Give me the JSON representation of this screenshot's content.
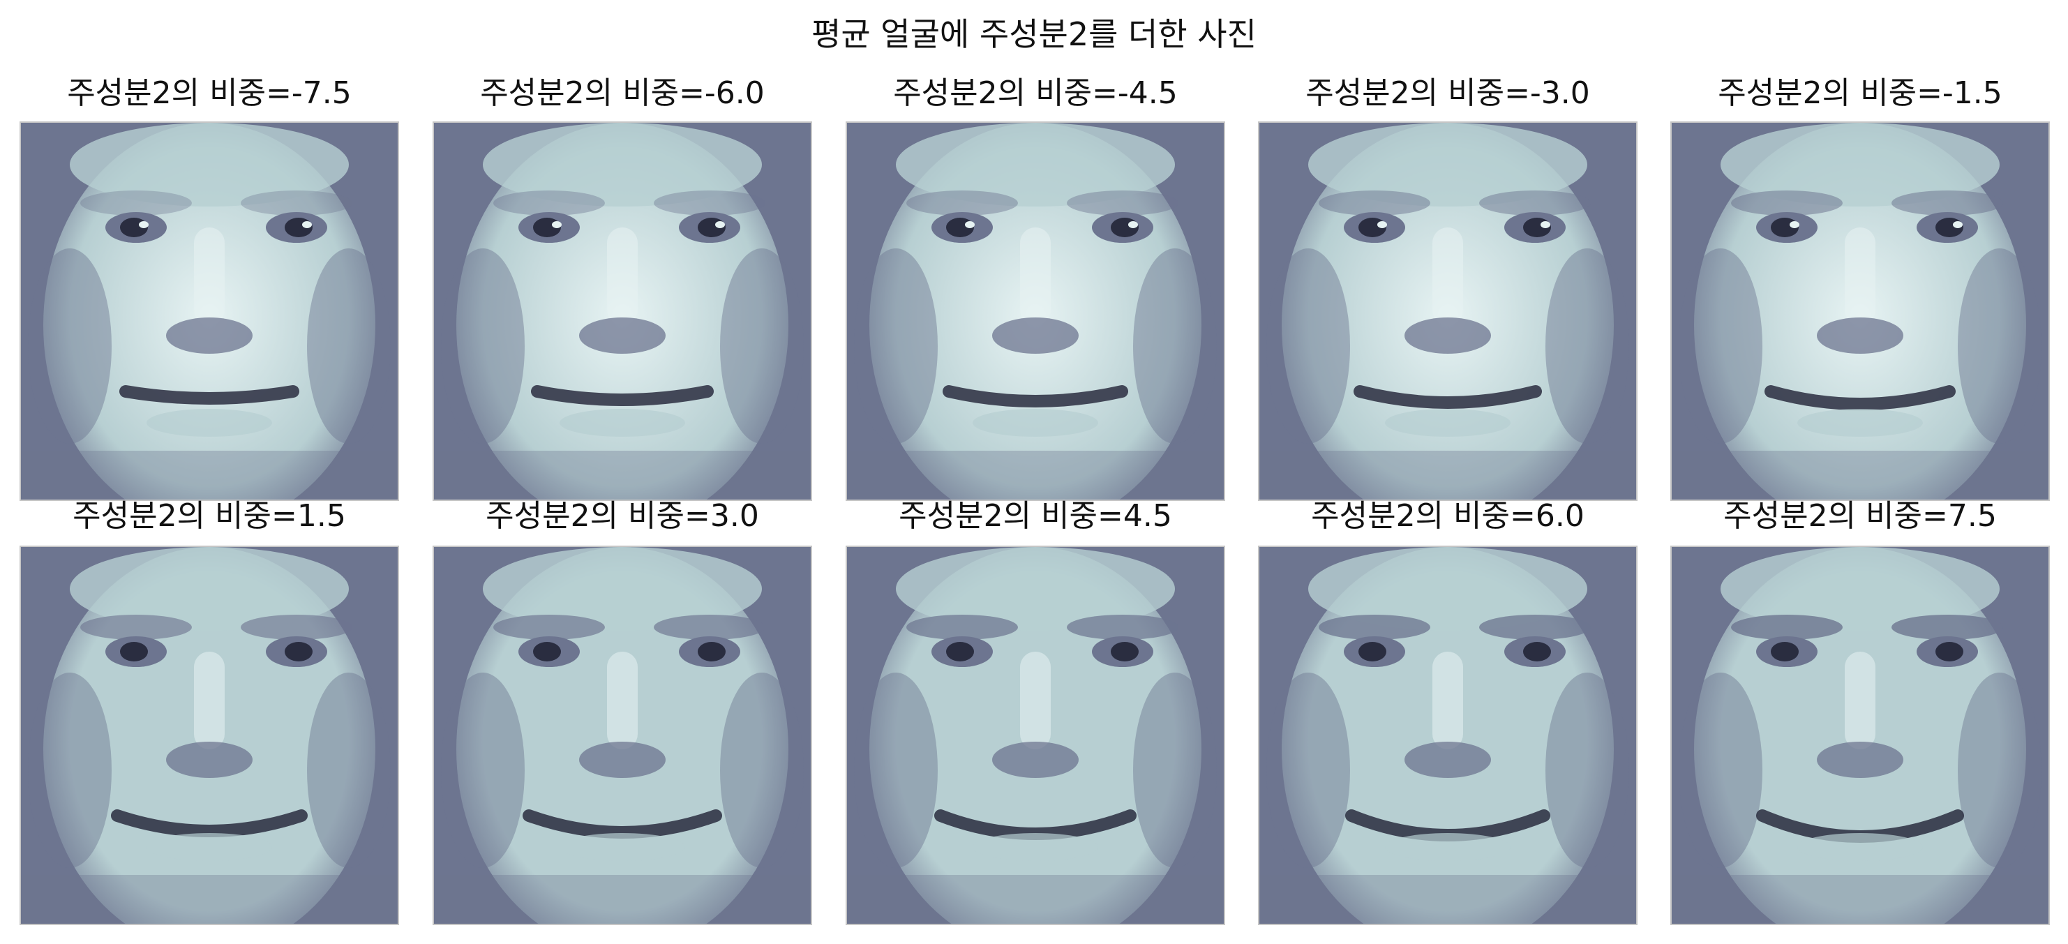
{
  "figure": {
    "suptitle": "평균 얼굴에 주성분2를 더한 사진",
    "colors": {
      "background": "#ffffff",
      "frame": "#c6c6c6",
      "colormap": "bone",
      "dark": "#2a2d40",
      "mid": "#6d7590",
      "light": "#b7cfd2",
      "highlight": "#e7f3f3"
    }
  },
  "panels": [
    {
      "title": "주성분2의 비중=-7.5",
      "weight": -7.5
    },
    {
      "title": "주성분2의 비중=-6.0",
      "weight": -6.0
    },
    {
      "title": "주성분2의 비중=-4.5",
      "weight": -4.5
    },
    {
      "title": "주성분2의 비중=-3.0",
      "weight": -3.0
    },
    {
      "title": "주성분2의 비중=-1.5",
      "weight": -1.5
    },
    {
      "title": "주성분2의 비중=1.5",
      "weight": 1.5
    },
    {
      "title": "주성분2의 비중=3.0",
      "weight": 3.0
    },
    {
      "title": "주성분2의 비중=4.5",
      "weight": 4.5
    },
    {
      "title": "주성분2의 비중=6.0",
      "weight": 6.0
    },
    {
      "title": "주성분2의 비중=7.5",
      "weight": 7.5
    }
  ]
}
